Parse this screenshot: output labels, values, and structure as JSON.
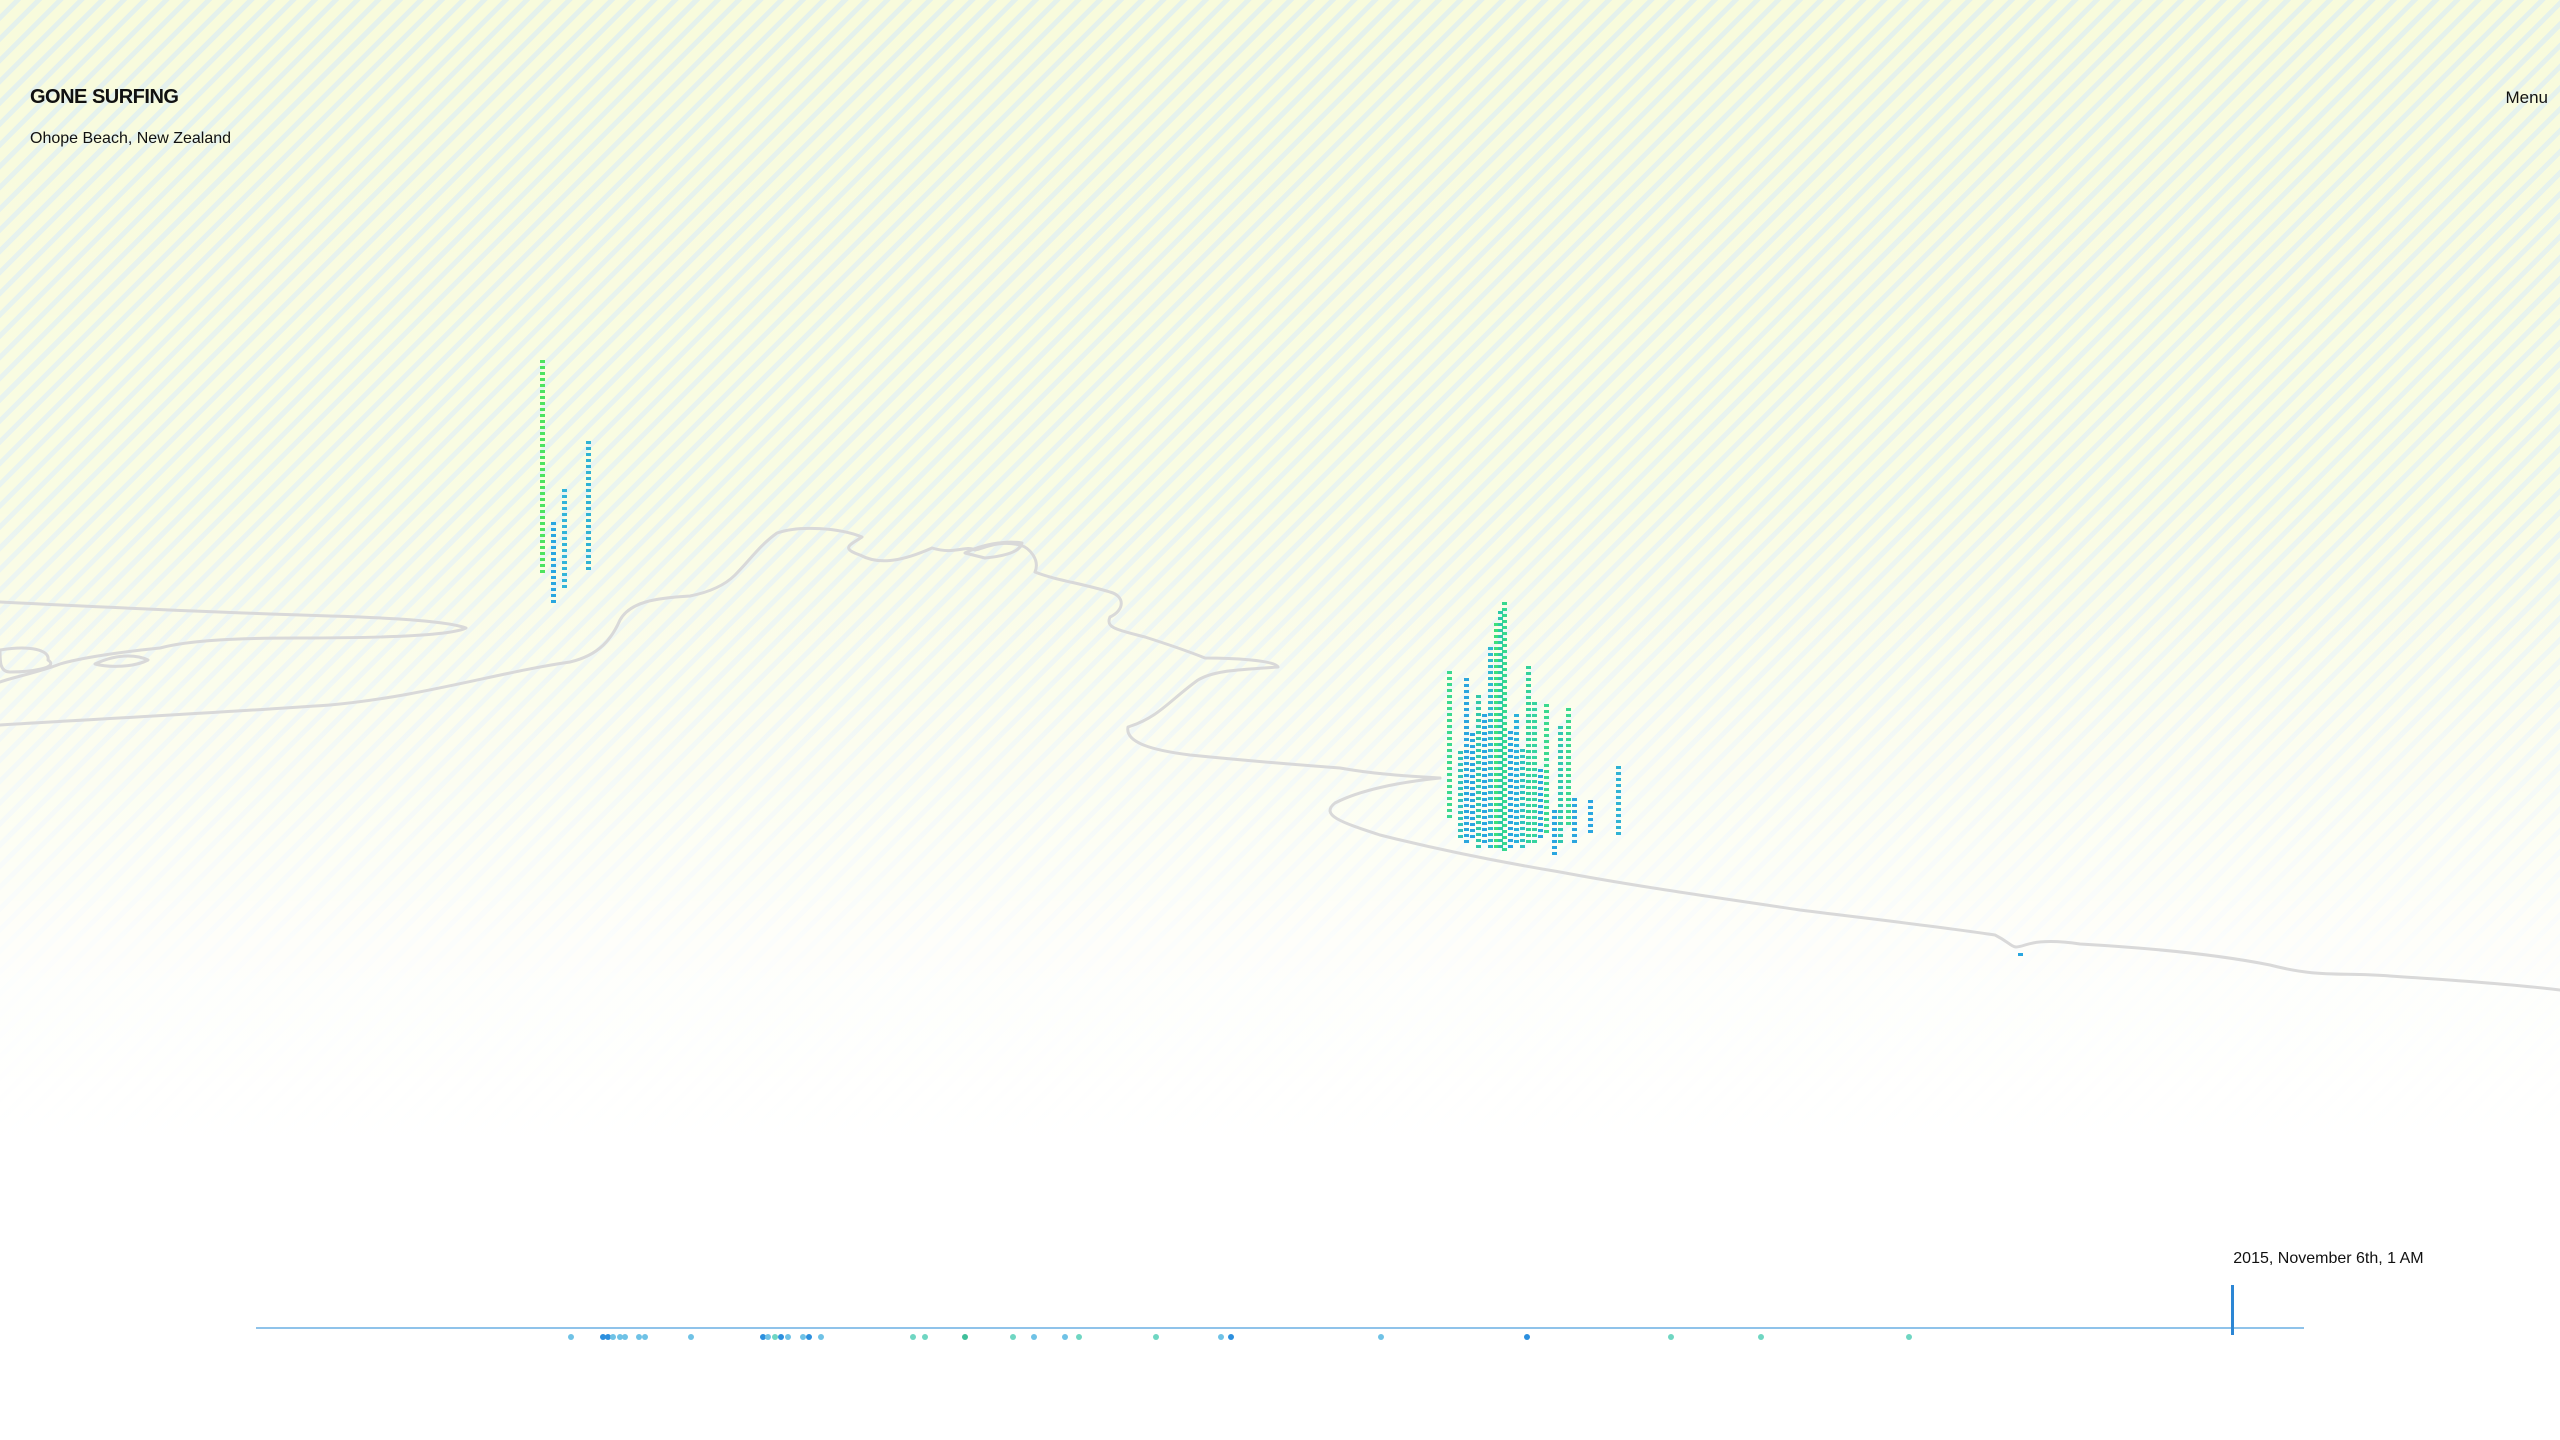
{
  "header": {
    "title": "GONE SURFING",
    "location": "Ohope Beach, New Zealand",
    "menu_label": "Menu"
  },
  "timeline": {
    "current_date": "2015, November 6th, 1 AM",
    "cursor_position_fraction": 0.9645
  },
  "colors": {
    "coastline": "#d9d9d9",
    "track": "#8fc3ea",
    "cursor": "#2c86d4",
    "swell_low": "#29a6e0",
    "swell_mid": "#38cfa8",
    "swell_high": "#4ce35f"
  },
  "swell_clusters": [
    {
      "name": "north-cluster",
      "bars": [
        {
          "x": 540,
          "base": 570,
          "n": 36,
          "c": "#4ce35f"
        },
        {
          "x": 551,
          "base": 600,
          "n": 14,
          "c": "#29a6e0"
        },
        {
          "x": 562,
          "base": 585,
          "n": 17,
          "c": "#33b4d9"
        },
        {
          "x": 586,
          "base": 567,
          "n": 22,
          "c": "#2fb3d4"
        }
      ]
    },
    {
      "name": "ohope-cluster",
      "bars": [
        {
          "x": 1447,
          "base": 815,
          "n": 25,
          "c": "#3ad98f"
        },
        {
          "x": 1458,
          "base": 835,
          "n": 15,
          "c": "#32c2b9"
        },
        {
          "x": 1464,
          "base": 840,
          "n": 28,
          "c": "#2ba6de"
        },
        {
          "x": 1470,
          "base": 835,
          "n": 18,
          "c": "#29a6e0"
        },
        {
          "x": 1476,
          "base": 845,
          "n": 26,
          "c": "#30c9a8"
        },
        {
          "x": 1482,
          "base": 840,
          "n": 22,
          "c": "#29a6e0"
        },
        {
          "x": 1488,
          "base": 845,
          "n": 34,
          "c": "#2fb7d0"
        },
        {
          "x": 1494,
          "base": 845,
          "n": 38,
          "c": "#3ce07a"
        },
        {
          "x": 1498,
          "base": 845,
          "n": 40,
          "c": "#2bc9a8"
        },
        {
          "x": 1502,
          "base": 848,
          "n": 42,
          "c": "#36d88f"
        },
        {
          "x": 1508,
          "base": 845,
          "n": 20,
          "c": "#29a6e0"
        },
        {
          "x": 1514,
          "base": 840,
          "n": 22,
          "c": "#2bb1db"
        },
        {
          "x": 1520,
          "base": 845,
          "n": 17,
          "c": "#30c2c0"
        },
        {
          "x": 1526,
          "base": 840,
          "n": 30,
          "c": "#33d29a"
        },
        {
          "x": 1532,
          "base": 840,
          "n": 24,
          "c": "#36d3a0"
        },
        {
          "x": 1538,
          "base": 835,
          "n": 12,
          "c": "#29a6e0"
        },
        {
          "x": 1544,
          "base": 830,
          "n": 22,
          "c": "#3ad98f"
        },
        {
          "x": 1552,
          "base": 852,
          "n": 8,
          "c": "#29a6e0"
        },
        {
          "x": 1558,
          "base": 840,
          "n": 20,
          "c": "#30c6b0"
        },
        {
          "x": 1566,
          "base": 822,
          "n": 20,
          "c": "#3ad98f"
        },
        {
          "x": 1572,
          "base": 840,
          "n": 8,
          "c": "#2ba6de"
        },
        {
          "x": 1588,
          "base": 830,
          "n": 6,
          "c": "#29a6e0"
        },
        {
          "x": 1616,
          "base": 832,
          "n": 12,
          "c": "#2fb3d4"
        }
      ]
    },
    {
      "name": "east-cluster",
      "bars": [
        {
          "x": 2018,
          "base": 953,
          "n": 1,
          "c": "#29a6e0"
        }
      ]
    }
  ],
  "timeline_dots": [
    {
      "x": 568,
      "c": "#6fc2e6"
    },
    {
      "x": 600,
      "c": "#2c8fde"
    },
    {
      "x": 605,
      "c": "#2c8fde"
    },
    {
      "x": 610,
      "c": "#6fc2e6"
    },
    {
      "x": 617,
      "c": "#6fc2e6"
    },
    {
      "x": 622,
      "c": "#6fc2e6"
    },
    {
      "x": 636,
      "c": "#6fc2e6"
    },
    {
      "x": 642,
      "c": "#6fc2e6"
    },
    {
      "x": 688,
      "c": "#6fc2e6"
    },
    {
      "x": 760,
      "c": "#2c8fde"
    },
    {
      "x": 765,
      "c": "#6fc2e6"
    },
    {
      "x": 772,
      "c": "#6fd6c2"
    },
    {
      "x": 778,
      "c": "#2c8fde"
    },
    {
      "x": 785,
      "c": "#6fc2e6"
    },
    {
      "x": 800,
      "c": "#6fc2e6"
    },
    {
      "x": 806,
      "c": "#2c8fde"
    },
    {
      "x": 818,
      "c": "#6fc2e6"
    },
    {
      "x": 910,
      "c": "#6fd6c2"
    },
    {
      "x": 922,
      "c": "#6fd6c2"
    },
    {
      "x": 962,
      "c": "#3fbf9a"
    },
    {
      "x": 1010,
      "c": "#6fd6c2"
    },
    {
      "x": 1031,
      "c": "#6fc2e6"
    },
    {
      "x": 1062,
      "c": "#6fc2e6"
    },
    {
      "x": 1076,
      "c": "#6fd6c2"
    },
    {
      "x": 1153,
      "c": "#6fd6c2"
    },
    {
      "x": 1218,
      "c": "#6fc2e6"
    },
    {
      "x": 1228,
      "c": "#2c8fde"
    },
    {
      "x": 1378,
      "c": "#6fc2e6"
    },
    {
      "x": 1524,
      "c": "#2c8fde"
    },
    {
      "x": 1668,
      "c": "#6fd6c2"
    },
    {
      "x": 1758,
      "c": "#6fd6c2"
    },
    {
      "x": 1906,
      "c": "#6fd6c2"
    }
  ]
}
